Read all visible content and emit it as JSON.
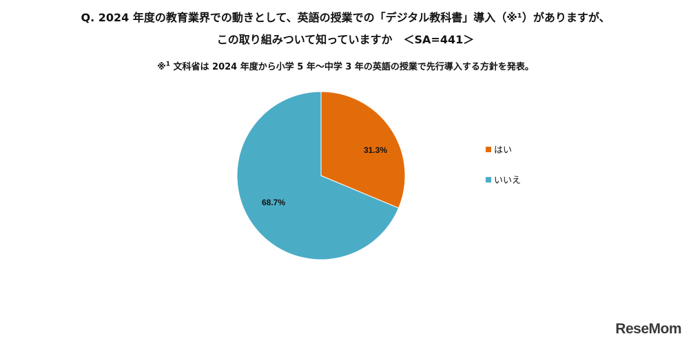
{
  "header": {
    "title_line1": "Q. 2024 年度の教育業界での動きとして、英語の授業での「デジタル教科書」導入（※¹）がありますが、",
    "title_line2": "この取り組みついて知っていますか　＜SA=441＞",
    "note_mark": "※",
    "note_sup": "1",
    "note_text": " 文科省は 2024 年度から小学 5 年～中学 3 年の英語の授業で先行導入する方針を発表。"
  },
  "chart_data": {
    "type": "pie",
    "categories": [
      "はい",
      "いいえ"
    ],
    "values": [
      31.3,
      68.7
    ],
    "value_labels": [
      "31.3%",
      "68.7%"
    ],
    "colors": [
      "#E36C0A",
      "#4BACC6"
    ],
    "start": "12 o'clock, clockwise",
    "legend_position": "right"
  },
  "watermark": "ReseMom"
}
